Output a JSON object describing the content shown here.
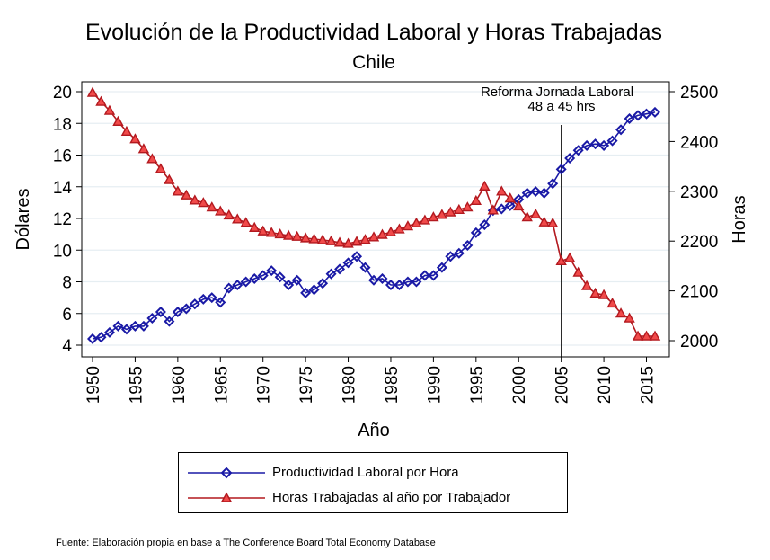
{
  "chart_data": {
    "type": "line",
    "title": "Evolución de la Productividad Laboral y Horas Trabajadas",
    "subtitle": "Chile",
    "xlabel": "Año",
    "ylabel_left": "Dólares",
    "ylabel_right": "Horas",
    "xlim": [
      1950,
      2016
    ],
    "ylim_left": [
      3,
      20.6
    ],
    "ylim_right": [
      1985,
      2510
    ],
    "x_ticks": [
      1950,
      1955,
      1960,
      1965,
      1970,
      1975,
      1980,
      1985,
      1990,
      1995,
      2000,
      2005,
      2010,
      2015
    ],
    "y_left_ticks": [
      4,
      6,
      8,
      10,
      12,
      14,
      16,
      18,
      20
    ],
    "y_right_ticks": [
      2000,
      2100,
      2200,
      2300,
      2400,
      2500
    ],
    "grid": true,
    "legend_position": "bottom",
    "x": [
      1950,
      1951,
      1952,
      1953,
      1954,
      1955,
      1956,
      1957,
      1958,
      1959,
      1960,
      1961,
      1962,
      1963,
      1964,
      1965,
      1966,
      1967,
      1968,
      1969,
      1970,
      1971,
      1972,
      1973,
      1974,
      1975,
      1976,
      1977,
      1978,
      1979,
      1980,
      1981,
      1982,
      1983,
      1984,
      1985,
      1986,
      1987,
      1988,
      1989,
      1990,
      1991,
      1992,
      1993,
      1994,
      1995,
      1996,
      1997,
      1998,
      1999,
      2000,
      2001,
      2002,
      2003,
      2004,
      2005,
      2006,
      2007,
      2008,
      2009,
      2010,
      2011,
      2012,
      2013,
      2014,
      2015,
      2016
    ],
    "series": [
      {
        "name": "Productividad Laboral por Hora",
        "axis": "left",
        "color": "#1a1aa6",
        "marker": "diamond",
        "values": [
          4.4,
          4.5,
          4.8,
          5.2,
          5.0,
          5.2,
          5.2,
          5.7,
          6.1,
          5.5,
          6.1,
          6.3,
          6.6,
          6.9,
          7.0,
          6.7,
          7.6,
          7.8,
          8.0,
          8.2,
          8.4,
          8.7,
          8.3,
          7.8,
          8.1,
          7.3,
          7.5,
          7.9,
          8.5,
          8.8,
          9.2,
          9.6,
          8.9,
          8.1,
          8.2,
          7.8,
          7.8,
          8.0,
          8.0,
          8.4,
          8.4,
          8.9,
          9.6,
          9.8,
          10.3,
          11.1,
          11.6,
          12.5,
          12.6,
          12.8,
          13.2,
          13.6,
          13.7,
          13.6,
          14.2,
          15.1,
          15.8,
          16.3,
          16.6,
          16.7,
          16.6,
          16.9,
          17.6,
          18.3,
          18.5,
          18.6,
          18.7
        ]
      },
      {
        "name": "Horas Trabajadas al año por Trabajador",
        "axis": "right",
        "color": "#b3191f",
        "marker": "triangle",
        "values": [
          2498,
          2480,
          2462,
          2440,
          2420,
          2405,
          2385,
          2365,
          2345,
          2323,
          2300,
          2292,
          2282,
          2277,
          2268,
          2260,
          2252,
          2244,
          2237,
          2227,
          2220,
          2217,
          2214,
          2211,
          2209,
          2206,
          2204,
          2202,
          2200,
          2197,
          2195,
          2199,
          2203,
          2208,
          2213,
          2218,
          2224,
          2230,
          2236,
          2242,
          2248,
          2253,
          2258,
          2263,
          2268,
          2281,
          2310,
          2262,
          2300,
          2286,
          2270,
          2248,
          2254,
          2238,
          2236,
          2160,
          2166,
          2137,
          2110,
          2095,
          2092,
          2075,
          2055,
          2045,
          2009,
          2009,
          2009
        ]
      }
    ],
    "annotation": {
      "x": 2005,
      "line1": "Reforma Jornada Laboral",
      "line2": "48 a 45 hrs"
    },
    "source": "Fuente: Elaboración propia en base a The Conference Board Total Economy Database"
  }
}
